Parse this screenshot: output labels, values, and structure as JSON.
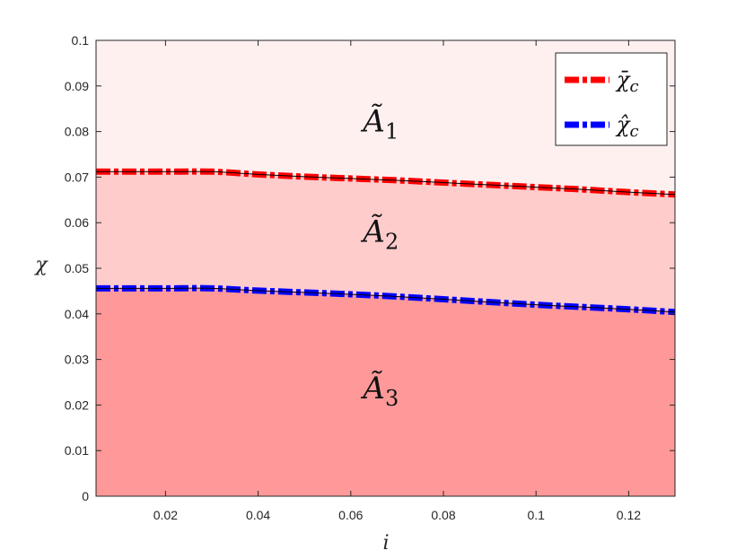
{
  "chart_data": {
    "type": "area",
    "xlabel": "i",
    "ylabel": "χ",
    "xlim": [
      0.005,
      0.13
    ],
    "ylim": [
      0,
      0.1
    ],
    "x_ticks": [
      0.02,
      0.04,
      0.06,
      0.08,
      0.1,
      0.12
    ],
    "x_tick_labels": [
      "0.02",
      "0.04",
      "0.06",
      "0.08",
      "0.1",
      "0.12"
    ],
    "y_ticks": [
      0,
      0.01,
      0.02,
      0.03,
      0.04,
      0.05,
      0.06,
      0.07,
      0.08,
      0.09,
      0.1
    ],
    "y_tick_labels": [
      "0",
      "0.01",
      "0.02",
      "0.03",
      "0.04",
      "0.05",
      "0.06",
      "0.07",
      "0.08",
      "0.09",
      "0.1"
    ],
    "x": [
      0.005,
      0.01,
      0.02,
      0.03,
      0.04,
      0.05,
      0.06,
      0.07,
      0.08,
      0.09,
      0.1,
      0.11,
      0.12,
      0.13
    ],
    "series": [
      {
        "name": "χ̄c",
        "color": "#ff0000",
        "values": [
          0.0712,
          0.0712,
          0.0712,
          0.0712,
          0.0706,
          0.0701,
          0.0697,
          0.0693,
          0.0688,
          0.0683,
          0.0678,
          0.0673,
          0.0667,
          0.0662
        ]
      },
      {
        "name": "χ̂c",
        "color": "#0000ff",
        "values": [
          0.0456,
          0.0456,
          0.0456,
          0.0456,
          0.0451,
          0.0447,
          0.0443,
          0.0438,
          0.0432,
          0.0426,
          0.042,
          0.0415,
          0.041,
          0.0404
        ]
      }
    ],
    "regions": [
      {
        "label": "Ã",
        "subscript": "1",
        "color": "#fff0f0",
        "label_x": 0.0665,
        "label_y": 0.08
      },
      {
        "label": "Ã",
        "subscript": "2",
        "color": "#ffcccc",
        "label_x": 0.0665,
        "label_y": 0.0558
      },
      {
        "label": "Ã",
        "subscript": "3",
        "color": "#ff9999",
        "label_x": 0.0665,
        "label_y": 0.0215
      }
    ],
    "legend": {
      "position": "top-right",
      "entries": [
        {
          "label": "χ̄",
          "subscript": "c",
          "color": "#ff0000"
        },
        {
          "label": "χ̂",
          "subscript": "c",
          "color": "#0000ff"
        }
      ]
    },
    "grid": false
  }
}
